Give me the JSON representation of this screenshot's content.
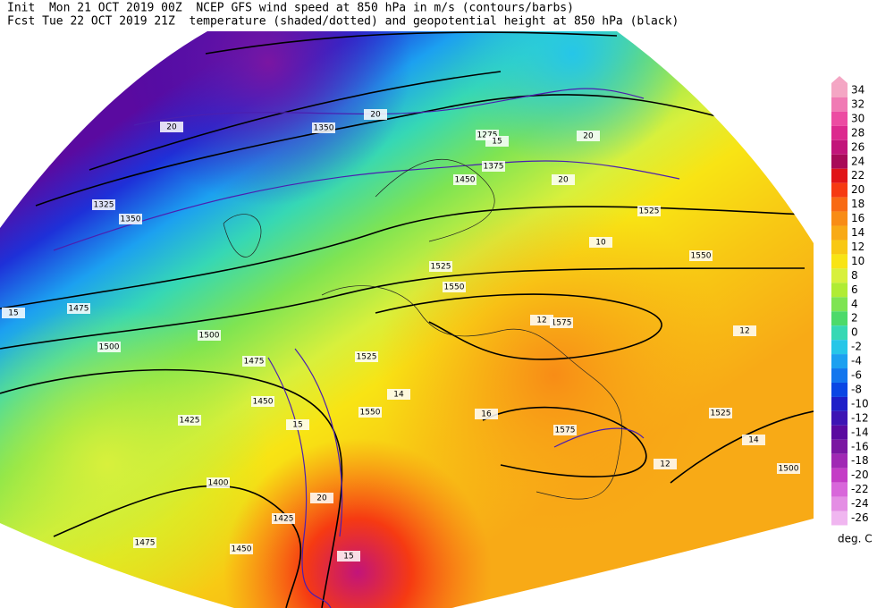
{
  "header": {
    "lines": [
      "Init  Mon 21 OCT 2019 00Z  NCEP GFS wind speed at 850 hPa in m/s (contours/barbs)",
      "Fcst Tue 22 OCT 2019 21Z  temperature (shaded/dotted) and geopotential height at 850 hPa (black)"
    ]
  },
  "colorbar": {
    "unit": "deg. C",
    "levels": [
      {
        "value": 34,
        "color": "#f4a6c4"
      },
      {
        "value": 32,
        "color": "#f07ab4"
      },
      {
        "value": 30,
        "color": "#ec4ca2"
      },
      {
        "value": 28,
        "color": "#dc2a8e"
      },
      {
        "value": 26,
        "color": "#c2147a"
      },
      {
        "value": 24,
        "color": "#a80a58"
      },
      {
        "value": 22,
        "color": "#e01418"
      },
      {
        "value": 20,
        "color": "#f63a12"
      },
      {
        "value": 18,
        "color": "#f86a14"
      },
      {
        "value": 16,
        "color": "#f88c16"
      },
      {
        "value": 14,
        "color": "#f8aa16"
      },
      {
        "value": 12,
        "color": "#f8c814"
      },
      {
        "value": 10,
        "color": "#f8e414"
      },
      {
        "value": 8,
        "color": "#d8f03c"
      },
      {
        "value": 6,
        "color": "#b0ec34"
      },
      {
        "value": 4,
        "color": "#7ee452"
      },
      {
        "value": 2,
        "color": "#4cda6a"
      },
      {
        "value": 0,
        "color": "#36d8b4"
      },
      {
        "value": -2,
        "color": "#26c6e8"
      },
      {
        "value": -4,
        "color": "#1ca0f0"
      },
      {
        "value": -6,
        "color": "#1276ee"
      },
      {
        "value": -8,
        "color": "#0a46e4"
      },
      {
        "value": -10,
        "color": "#1e1ec8"
      },
      {
        "value": -12,
        "color": "#3c14b4"
      },
      {
        "value": -14,
        "color": "#5a0aa0"
      },
      {
        "value": -16,
        "color": "#7a16a2"
      },
      {
        "value": -18,
        "color": "#a028b4"
      },
      {
        "value": -20,
        "color": "#c43cc6"
      },
      {
        "value": -22,
        "color": "#d866da"
      },
      {
        "value": -24,
        "color": "#e48ee4"
      },
      {
        "value": -26,
        "color": "#f0b6f0"
      }
    ]
  },
  "map_labels": [
    1525,
    1550,
    1575,
    1525,
    1500,
    1550,
    1525,
    1525,
    1550,
    1575,
    1500,
    1500,
    1475,
    1475,
    1450,
    1425,
    1400,
    1425,
    1475,
    1450,
    1350,
    1325,
    1350,
    1375,
    1450,
    1275,
    15,
    20,
    20,
    15,
    20,
    15,
    12,
    14,
    16,
    12,
    14,
    10,
    12,
    20,
    15,
    20
  ]
}
